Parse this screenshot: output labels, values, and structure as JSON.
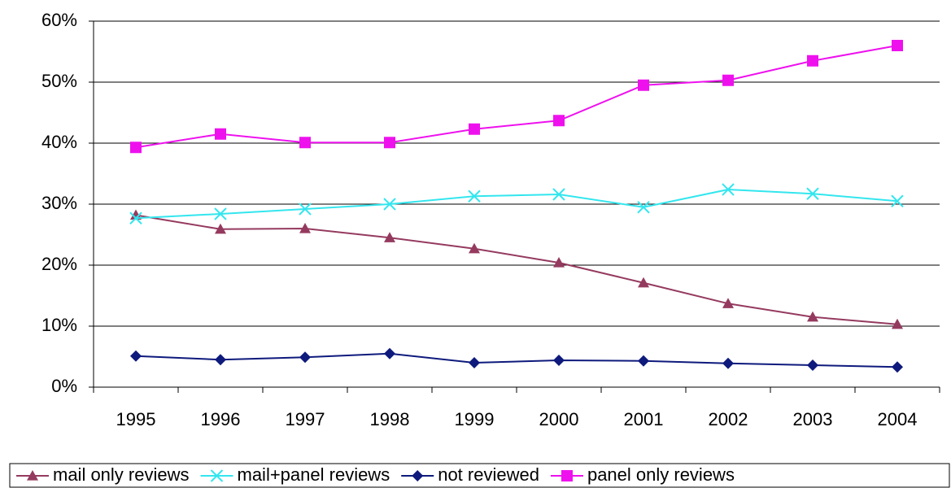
{
  "chart_data": {
    "type": "line",
    "categories": [
      "1995",
      "1996",
      "1997",
      "1998",
      "1999",
      "2000",
      "2001",
      "2002",
      "2003",
      "2004"
    ],
    "series": [
      {
        "name": "mail only reviews",
        "color": "#953a5f",
        "marker": "triangle",
        "values": [
          28.2,
          25.9,
          26.0,
          24.5,
          22.7,
          20.4,
          17.1,
          13.7,
          11.5,
          10.3
        ]
      },
      {
        "name": "mail+panel reviews",
        "color": "#33e6ee",
        "marker": "x",
        "values": [
          27.7,
          28.4,
          29.2,
          30.0,
          31.3,
          31.6,
          29.5,
          32.4,
          31.7,
          30.5
        ]
      },
      {
        "name": "not reviewed",
        "color": "#0e1a7c",
        "marker": "diamond",
        "values": [
          5.1,
          4.5,
          4.9,
          5.5,
          4.0,
          4.4,
          4.3,
          3.9,
          3.6,
          3.3
        ]
      },
      {
        "name": "panel only reviews",
        "color": "#ee11ee",
        "marker": "square",
        "values": [
          39.3,
          41.5,
          40.1,
          40.1,
          42.3,
          43.7,
          49.5,
          50.3,
          53.5,
          56.0
        ]
      }
    ],
    "ylim": [
      0,
      60
    ],
    "yticks": [
      {
        "value": 0,
        "label": "0%"
      },
      {
        "value": 10,
        "label": "10%"
      },
      {
        "value": 20,
        "label": "20%"
      },
      {
        "value": 30,
        "label": "30%"
      },
      {
        "value": 40,
        "label": "40%"
      },
      {
        "value": 50,
        "label": "50%"
      },
      {
        "value": 60,
        "label": "60%"
      }
    ],
    "grid": true,
    "legend": "bottom"
  }
}
